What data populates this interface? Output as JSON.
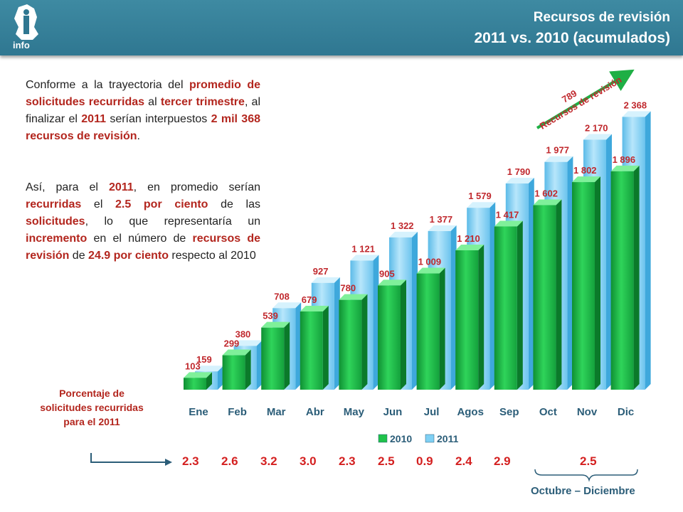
{
  "header": {
    "title_line1": "Recursos de revisión",
    "title_line2": "2011 vs. 2010 (acumulados)",
    "logo_text": "info"
  },
  "paragraph1": {
    "t1": "Conforme a la trayectoria del ",
    "b1": "promedio de solicitudes recurridas",
    "t2": " al ",
    "b2": "tercer trimestre",
    "t3": ", al finalizar el ",
    "b3": "2011",
    "t4": " serían interpuestos ",
    "b4": "2 mil 368 recursos de revisión",
    "t5": "."
  },
  "paragraph2": {
    "t1": "Así, para el ",
    "b1": "2011",
    "t2": ", en promedio serían ",
    "b2": "recurridas",
    "t3": " el ",
    "b3": "2.5 por ciento",
    "t4": " de las ",
    "b4": "solicitudes",
    "t5": ", lo que representaría un ",
    "b5": "incremento",
    "t6": " en el número de ",
    "b6": "recursos de revisión",
    "t7": " de ",
    "b7": "24.9 por ciento",
    "t8": " respecto al 2010"
  },
  "arrow_annotation": {
    "value": "789",
    "text": "Recursos de revisión"
  },
  "chart_data": {
    "type": "bar",
    "categories": [
      "Ene",
      "Feb",
      "Mar",
      "Abr",
      "May",
      "Jun",
      "Jul",
      "Agos",
      "Sep",
      "Oct",
      "Nov",
      "Dic"
    ],
    "series": [
      {
        "name": "2010",
        "values": [
          103,
          299,
          539,
          679,
          780,
          905,
          1009,
          1210,
          1417,
          1602,
          1802,
          1896
        ],
        "labels": [
          "103",
          "299",
          "539",
          "679",
          "780",
          "905",
          "1 009",
          "1 210",
          "1 417",
          "1 602",
          "1 802",
          "1 896"
        ],
        "color": "#1fc24a"
      },
      {
        "name": "2011",
        "values": [
          159,
          380,
          708,
          927,
          1121,
          1322,
          1377,
          1579,
          1790,
          1977,
          2170,
          2368
        ],
        "labels": [
          "159",
          "380",
          "708",
          "927",
          "1 121",
          "1 322",
          "1 377",
          "1 579",
          "1 790",
          "1 977",
          "2 170",
          "2 368"
        ],
        "color": "#7fd0f4"
      }
    ],
    "title": "",
    "xlabel": "",
    "ylabel": "",
    "ylim": [
      0,
      2400
    ],
    "grid": false,
    "legend_position": "bottom",
    "label_color": "#c0282d"
  },
  "percent_block": {
    "label": "Porcentaje de solicitudes recurridas para el 2011",
    "values": [
      "2.3",
      "2.6",
      "3.2",
      "3.0",
      "2.3",
      "2.5",
      "0.9",
      "2.4",
      "2.9",
      "2.5"
    ],
    "range_label": "Octubre – Diciembre"
  }
}
